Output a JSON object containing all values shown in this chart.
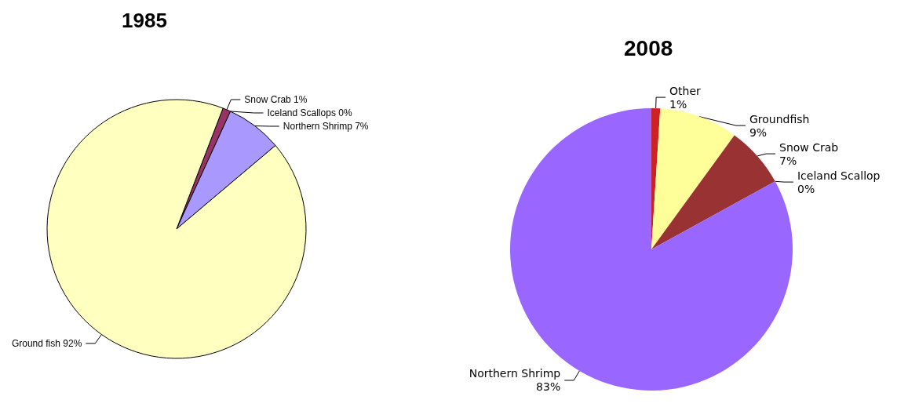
{
  "chart_data": [
    {
      "type": "pie",
      "title": "1985",
      "categories": [
        "Snow Crab",
        "Iceland Scallops",
        "Northern Shrimp",
        "Ground fish"
      ],
      "values": [
        1,
        0,
        7,
        92
      ],
      "value_labels": [
        "1%",
        "0%",
        "7%",
        "92%"
      ],
      "colors": [
        "#993366",
        "#cc99ff",
        "#a999ff",
        "#ffffc0"
      ]
    },
    {
      "type": "pie",
      "title": "2008",
      "categories": [
        "Other",
        "Groundfish",
        "Snow Crab",
        "Iceland Scallop",
        "Northern Shrimp"
      ],
      "values": [
        1,
        9,
        7,
        0,
        83
      ],
      "value_labels": [
        "1%",
        "9%",
        "7%",
        "0%",
        "83%"
      ],
      "colors": [
        "#cc2222",
        "#ffff99",
        "#993333",
        "#ff9966",
        "#9966ff"
      ]
    }
  ]
}
